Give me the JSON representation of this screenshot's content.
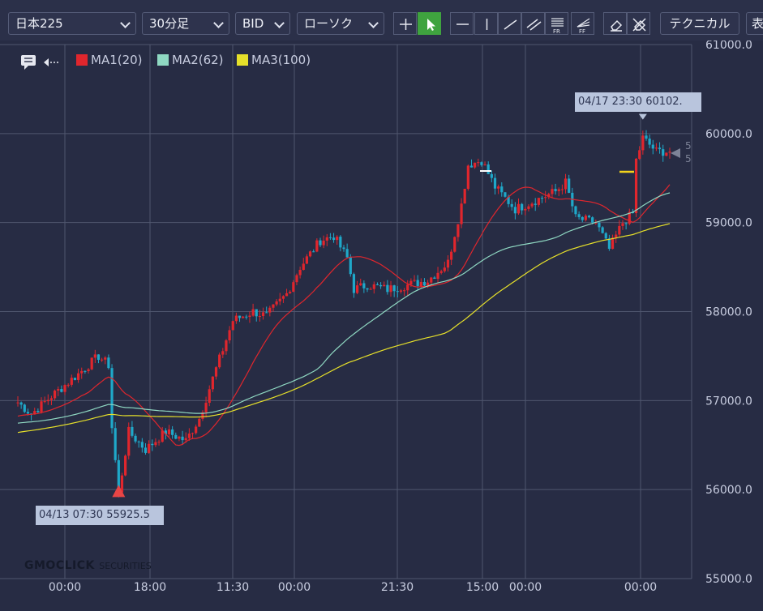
{
  "toolbar": {
    "symbol": "日本225",
    "timeframe": "30分足",
    "price_side": "BID",
    "chart_style": "ローソク",
    "technical_label": "テクニカル",
    "overflow_label": "表",
    "fr_label": "FR",
    "ff_label": "FF"
  },
  "colors": {
    "background": "#272c44",
    "up_candle": "#e0262d",
    "down_candle": "#1fa8c9",
    "ma1": "#e0262d",
    "ma2": "#8fd8c2",
    "ma3": "#e6e02a",
    "grid": "#4f566e",
    "active_tool": "#3fa33f"
  },
  "legend": [
    {
      "label": "MA1(20)",
      "color": "#e0262d"
    },
    {
      "label": "MA2(62)",
      "color": "#8fd8c2"
    },
    {
      "label": "MA3(100)",
      "color": "#e6e02a"
    }
  ],
  "callouts": {
    "high": "04/17 23:30 60102.",
    "low": "04/13 07:30 55925.5"
  },
  "right_marker": "5",
  "logo": {
    "brand": "GMOCLICK",
    "suffix": "SECURITIES"
  },
  "chart_data": {
    "type": "candlestick",
    "x_tick_labels": [
      "00:00",
      "18:00",
      "11:30",
      "00:00",
      "21:30",
      "15:00",
      "00:00",
      "00:00"
    ],
    "y_ticks": [
      55000,
      56000,
      57000,
      58000,
      59000,
      60000,
      61000
    ],
    "y_tick_labels": [
      "55000.0",
      "56000.0",
      "57000.0",
      "58000.0",
      "59000.0",
      "60000.0",
      "61000.0"
    ],
    "ylim": [
      55000,
      61000
    ],
    "grid": true,
    "legend_position": "top-left",
    "anchor_points": [
      [
        0,
        56980
      ],
      [
        4,
        56850
      ],
      [
        10,
        57050
      ],
      [
        18,
        57300
      ],
      [
        24,
        57500
      ],
      [
        27,
        57400
      ],
      [
        28,
        56700
      ],
      [
        30,
        55950
      ],
      [
        33,
        56650
      ],
      [
        38,
        56450
      ],
      [
        44,
        56650
      ],
      [
        50,
        56550
      ],
      [
        54,
        56800
      ],
      [
        58,
        57250
      ],
      [
        64,
        57900
      ],
      [
        70,
        58000
      ],
      [
        74,
        57950
      ],
      [
        80,
        58200
      ],
      [
        84,
        58500
      ],
      [
        90,
        58800
      ],
      [
        94,
        58850
      ],
      [
        98,
        58600
      ],
      [
        100,
        58250
      ],
      [
        104,
        58300
      ],
      [
        110,
        58250
      ],
      [
        116,
        58300
      ],
      [
        122,
        58350
      ],
      [
        128,
        58550
      ],
      [
        132,
        59200
      ],
      [
        134,
        59650
      ],
      [
        138,
        59700
      ],
      [
        142,
        59400
      ],
      [
        148,
        59150
      ],
      [
        154,
        59250
      ],
      [
        160,
        59350
      ],
      [
        163,
        59450
      ],
      [
        166,
        59050
      ],
      [
        172,
        59000
      ],
      [
        176,
        58700
      ],
      [
        180,
        59000
      ],
      [
        183,
        59100
      ],
      [
        184,
        59700
      ],
      [
        186,
        59950
      ],
      [
        190,
        59800
      ],
      [
        194,
        59800
      ]
    ],
    "series": [
      {
        "name": "MA1(20)",
        "period": 20
      },
      {
        "name": "MA2(62)",
        "period": 62
      },
      {
        "name": "MA3(100)",
        "period": 100
      }
    ],
    "warmup_anchor_points": [
      [
        0,
        56300
      ],
      [
        40,
        56650
      ],
      [
        90,
        56800
      ],
      [
        100,
        56900
      ]
    ],
    "annotations": [
      {
        "label": "04/17 23:30 60102.",
        "value": 60102
      },
      {
        "label": "04/13 07:30 55925.5",
        "value": 55925.5
      }
    ]
  }
}
